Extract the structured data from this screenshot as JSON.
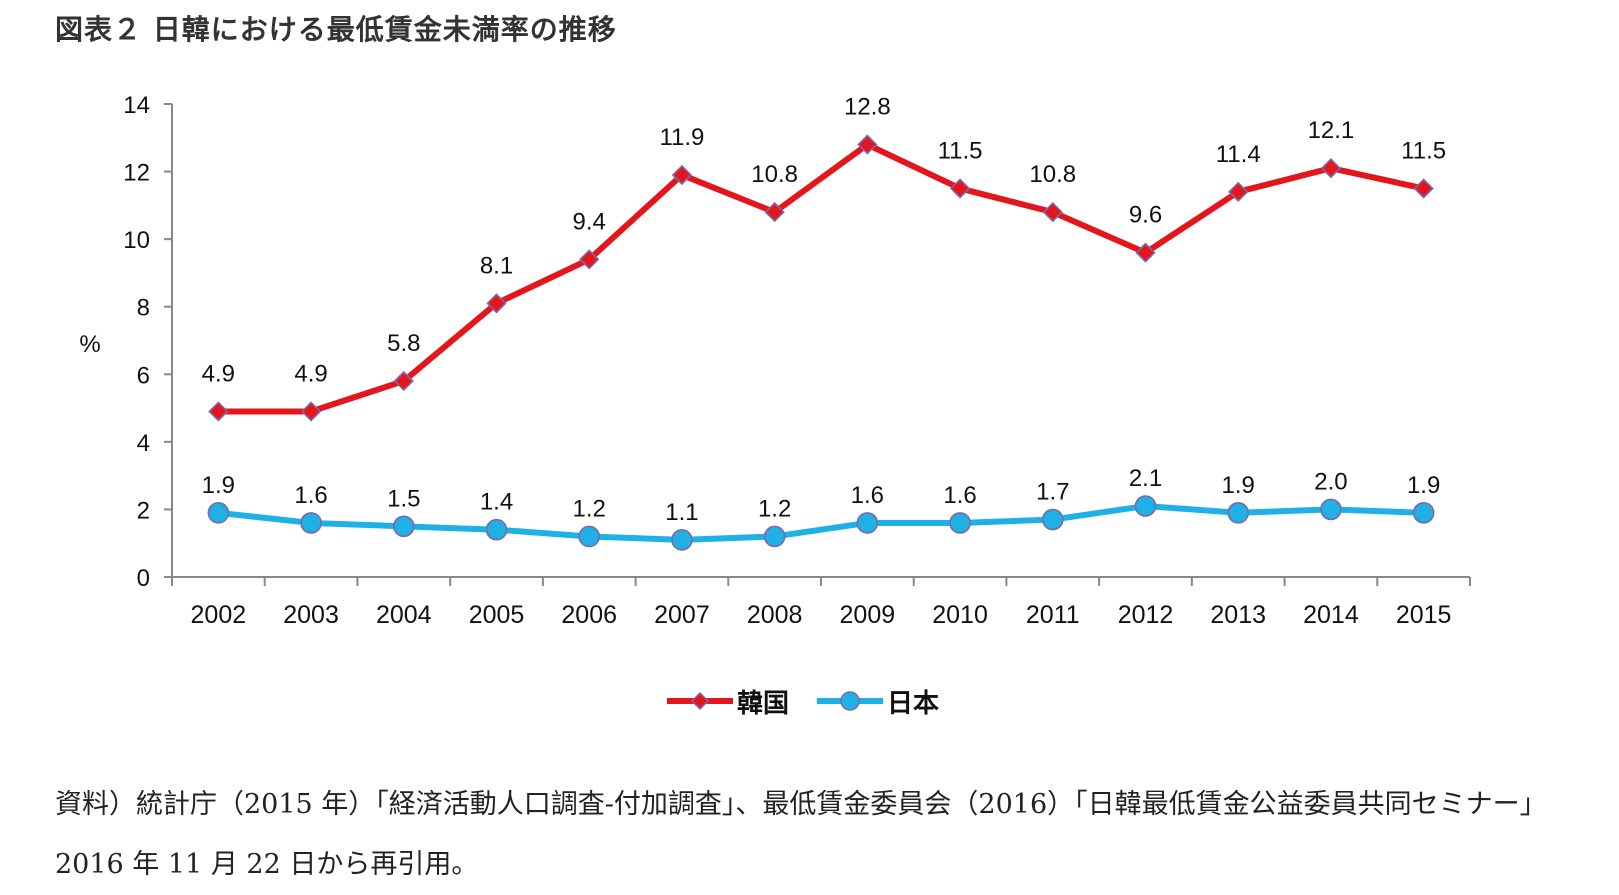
{
  "figure": {
    "title": "図表２ 日韓における最低賃金未満率の推移"
  },
  "chart_data": {
    "type": "line",
    "title": "",
    "xlabel": "",
    "ylabel": "%",
    "categories": [
      "2002",
      "2003",
      "2004",
      "2005",
      "2006",
      "2007",
      "2008",
      "2009",
      "2010",
      "2011",
      "2012",
      "2013",
      "2014",
      "2015"
    ],
    "ylim": [
      0,
      14
    ],
    "yticks": [
      "0",
      "2",
      "4",
      "6",
      "8",
      "10",
      "12",
      "14"
    ],
    "grid": false,
    "legend_position": "bottom-center",
    "series": [
      {
        "name": "韓国",
        "color": "#e4151b",
        "marker": "diamond",
        "values": [
          4.9,
          4.9,
          5.8,
          8.1,
          9.4,
          11.9,
          10.8,
          12.8,
          11.5,
          10.8,
          9.6,
          11.4,
          12.1,
          11.5
        ],
        "labels": [
          "4.9",
          "4.9",
          "5.8",
          "8.1",
          "9.4",
          "11.9",
          "10.8",
          "12.8",
          "11.5",
          "10.8",
          "9.6",
          "11.4",
          "12.1",
          "11.5"
        ]
      },
      {
        "name": "日本",
        "color": "#1fb1e6",
        "marker": "circle",
        "values": [
          1.9,
          1.6,
          1.5,
          1.4,
          1.2,
          1.1,
          1.2,
          1.6,
          1.6,
          1.7,
          2.1,
          1.9,
          2.0,
          1.9
        ],
        "labels": [
          "1.9",
          "1.6",
          "1.5",
          "1.4",
          "1.2",
          "1.1",
          "1.2",
          "1.6",
          "1.6",
          "1.7",
          "2.1",
          "1.9",
          "2.0",
          "1.9"
        ]
      }
    ]
  },
  "legend": {
    "korea_label": "韓国",
    "japan_label": "日本"
  },
  "source": {
    "note": "資料）統計庁（2015 年）「経済活動人口調査‐付加調査」、最低賃金委員会（2016）「日韓最低賃金公益委員共同セミナー」2016 年 11 月 22 日から再引用。"
  }
}
